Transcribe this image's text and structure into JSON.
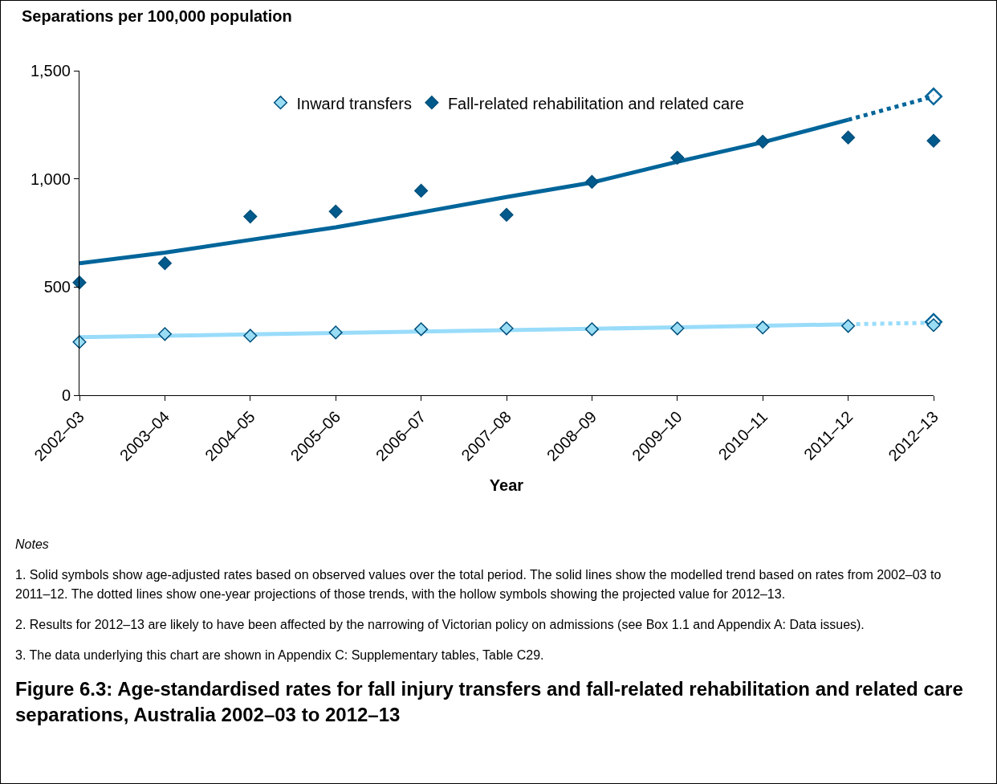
{
  "chart_data": {
    "type": "scatter",
    "title": "Figure 6.3: Age-standardised rates for fall injury transfers and fall-related rehabilitation and related care separations, Australia 2002–03 to 2012–13",
    "xlabel": "Year",
    "ylabel": "Separations per 100,000 population",
    "categories": [
      "2002–03",
      "2003–04",
      "2004–05",
      "2005–06",
      "2006–07",
      "2007–08",
      "2008–09",
      "2009–10",
      "2010–11",
      "2011–12",
      "2012–13"
    ],
    "ylim": [
      0,
      1500
    ],
    "yticks": [
      0,
      500,
      {
        "value": 1000,
        "label": "1,000"
      },
      {
        "value": 1500,
        "label": "1,500"
      }
    ],
    "grid": false,
    "legend": "top",
    "series": [
      {
        "type": "line",
        "color": "#99dcfa",
        "line_style": "solid",
        "marker": "none",
        "values": [
          268,
          275,
          281,
          288,
          294,
          301,
          307,
          314,
          321,
          328,
          null
        ]
      },
      {
        "type": "line",
        "color": "#99dcfa",
        "line_style": "dotted",
        "marker": "none",
        "values": [
          null,
          null,
          null,
          null,
          null,
          null,
          null,
          null,
          null,
          328,
          335
        ]
      },
      {
        "type": "line",
        "color": "#00659a",
        "line_style": "solid",
        "marker": "none",
        "values": [
          610,
          659,
          718,
          776,
          845,
          916,
          983,
          1079,
          1169,
          1273,
          null
        ]
      },
      {
        "type": "line",
        "color": "#00659a",
        "line_style": "dotted",
        "marker": "none",
        "values": [
          null,
          null,
          null,
          null,
          null,
          null,
          null,
          null,
          null,
          1273,
          1381
        ]
      },
      {
        "type": "scatter",
        "color": "#00659a",
        "marker": "diamond-open",
        "values": [
          null,
          null,
          null,
          null,
          null,
          null,
          null,
          null,
          null,
          null,
          339
        ]
      },
      {
        "type": "scatter",
        "color": "#00659a",
        "marker": "diamond-open",
        "values": [
          null,
          null,
          null,
          null,
          null,
          null,
          null,
          null,
          null,
          null,
          1381
        ]
      },
      {
        "name": "Inward transfers",
        "color": "#99ddf5",
        "marker": "diamond",
        "values": [
          246,
          283,
          275,
          290,
          305,
          309,
          305,
          309,
          313,
          320,
          324
        ]
      },
      {
        "name": "Fall-related rehabilitation and related care",
        "color": "#005a8c",
        "marker": "diamond",
        "values": [
          521,
          610,
          826,
          849,
          945,
          834,
          986,
          1098,
          1172,
          1191,
          1176
        ]
      }
    ],
    "annotations": [
      "Notes",
      "1. Solid symbols show age-adjusted rates based on observed values over the total period. The solid lines show the modelled trend based on rates from 2002–03 to 2011–12. The dotted lines show one-year projections of those trends, with the hollow symbols showing the projected value for 2012–13.",
      "2. Results for 2012–13 are likely to have been affected by the narrowing of Victorian policy on admissions (see Box 1.1 and Appendix A: Data issues).",
      "3. The data underlying this chart are shown in Appendix C: Supplementary tables, Table C29."
    ]
  }
}
